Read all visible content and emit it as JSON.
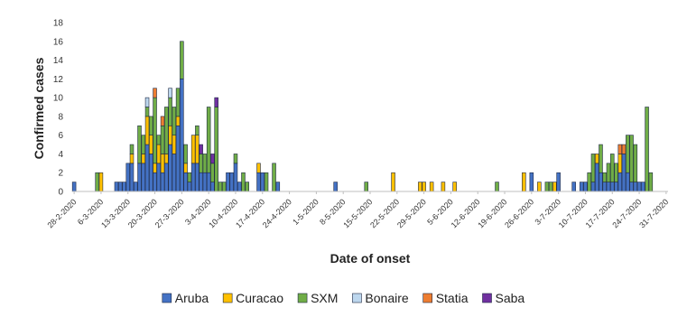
{
  "chart_data": {
    "type": "bar",
    "stacked": true,
    "title": "",
    "xlabel": "Date of onset",
    "ylabel": "Confirmed cases",
    "ylim": [
      0,
      18
    ],
    "yticks": [
      0,
      2,
      4,
      6,
      8,
      10,
      12,
      14,
      16,
      18
    ],
    "grid": false,
    "legend_position": "bottom",
    "x_start": "28-2-2020",
    "x_end": "1-8-2020",
    "x_tick_labels": [
      "28-2-2020",
      "6-3-2020",
      "13-3-2020",
      "20-3-2020",
      "27-3-2020",
      "3-4-2020",
      "10-4-2020",
      "17-4-2020",
      "24-4-2020",
      "1-5-2020",
      "8-5-2020",
      "15-5-2020",
      "22-5-2020",
      "29-5-2020",
      "5-6-2020",
      "12-6-2020",
      "19-6-2020",
      "26-6-2020",
      "3-7-2020",
      "10-7-2020",
      "17-7-2020",
      "24-7-2020",
      "31-7-2020"
    ],
    "series": [
      {
        "name": "Aruba",
        "color": "#4472C4"
      },
      {
        "name": "Curacao",
        "color": "#FFC000"
      },
      {
        "name": "SXM",
        "color": "#70AD47"
      },
      {
        "name": "Bonaire",
        "color": "#BDD7EE"
      },
      {
        "name": "Statia",
        "color": "#ED7D31"
      },
      {
        "name": "Saba",
        "color": "#7030A0"
      }
    ],
    "bars": [
      {
        "date": "28-2-2020",
        "values": [
          1,
          0,
          0,
          0,
          0,
          0
        ]
      },
      {
        "date": "5-3-2020",
        "values": [
          0,
          0,
          2,
          0,
          0,
          0
        ]
      },
      {
        "date": "6-3-2020",
        "values": [
          0,
          2,
          0,
          0,
          0,
          0
        ]
      },
      {
        "date": "10-3-2020",
        "values": [
          1,
          0,
          0,
          0,
          0,
          0
        ]
      },
      {
        "date": "11-3-2020",
        "values": [
          1,
          0,
          0,
          0,
          0,
          0
        ]
      },
      {
        "date": "12-3-2020",
        "values": [
          1,
          0,
          0,
          0,
          0,
          0
        ]
      },
      {
        "date": "13-3-2020",
        "values": [
          3,
          0,
          0,
          0,
          0,
          0
        ]
      },
      {
        "date": "14-3-2020",
        "values": [
          3,
          1,
          1,
          0,
          0,
          0
        ]
      },
      {
        "date": "15-3-2020",
        "values": [
          1,
          0,
          0,
          0,
          0,
          0
        ]
      },
      {
        "date": "16-3-2020",
        "values": [
          3,
          0,
          4,
          0,
          0,
          0
        ]
      },
      {
        "date": "17-3-2020",
        "values": [
          3,
          1,
          2,
          0,
          0,
          0
        ]
      },
      {
        "date": "18-3-2020",
        "values": [
          5,
          3,
          1,
          1,
          0,
          0
        ]
      },
      {
        "date": "19-3-2020",
        "values": [
          4,
          2,
          2,
          0,
          0,
          0
        ]
      },
      {
        "date": "20-3-2020",
        "values": [
          2,
          1,
          7,
          0,
          1,
          0
        ]
      },
      {
        "date": "21-3-2020",
        "values": [
          3,
          2,
          1,
          0,
          0,
          0
        ]
      },
      {
        "date": "22-3-2020",
        "values": [
          2,
          2,
          3,
          0,
          1,
          0
        ]
      },
      {
        "date": "23-3-2020",
        "values": [
          3,
          1,
          5,
          0,
          0,
          0
        ]
      },
      {
        "date": "24-3-2020",
        "values": [
          5,
          2,
          3,
          1,
          0,
          0
        ]
      },
      {
        "date": "25-3-2020",
        "values": [
          4,
          2,
          3,
          0,
          0,
          0
        ]
      },
      {
        "date": "26-3-2020",
        "values": [
          7,
          1,
          3,
          0,
          0,
          0
        ]
      },
      {
        "date": "27-3-2020",
        "values": [
          12,
          0,
          4,
          0,
          0,
          0
        ]
      },
      {
        "date": "28-3-2020",
        "values": [
          2,
          1,
          2,
          0,
          0,
          0
        ]
      },
      {
        "date": "29-3-2020",
        "values": [
          1,
          0,
          1,
          0,
          0,
          0
        ]
      },
      {
        "date": "30-3-2020",
        "values": [
          3,
          3,
          0,
          0,
          0,
          0
        ]
      },
      {
        "date": "31-3-2020",
        "values": [
          3,
          3,
          1,
          0,
          0,
          0
        ]
      },
      {
        "date": "1-4-2020",
        "values": [
          2,
          0,
          2,
          0,
          0,
          1
        ]
      },
      {
        "date": "2-4-2020",
        "values": [
          2,
          0,
          2,
          0,
          0,
          0
        ]
      },
      {
        "date": "3-4-2020",
        "values": [
          2,
          0,
          7,
          0,
          0,
          0
        ]
      },
      {
        "date": "4-4-2020",
        "values": [
          1,
          0,
          2,
          0,
          0,
          1
        ]
      },
      {
        "date": "5-4-2020",
        "values": [
          0,
          0,
          9,
          0,
          0,
          1
        ]
      },
      {
        "date": "6-4-2020",
        "values": [
          0,
          0,
          1,
          0,
          0,
          0
        ]
      },
      {
        "date": "7-4-2020",
        "values": [
          0,
          0,
          1,
          0,
          0,
          0
        ]
      },
      {
        "date": "8-4-2020",
        "values": [
          2,
          0,
          0,
          0,
          0,
          0
        ]
      },
      {
        "date": "9-4-2020",
        "values": [
          2,
          0,
          0,
          0,
          0,
          0
        ]
      },
      {
        "date": "10-4-2020",
        "values": [
          3,
          0,
          1,
          0,
          0,
          0
        ]
      },
      {
        "date": "11-4-2020",
        "values": [
          1,
          0,
          0,
          0,
          0,
          0
        ]
      },
      {
        "date": "12-4-2020",
        "values": [
          0,
          0,
          2,
          0,
          0,
          0
        ]
      },
      {
        "date": "13-4-2020",
        "values": [
          0,
          0,
          1,
          0,
          0,
          0
        ]
      },
      {
        "date": "16-4-2020",
        "values": [
          2,
          1,
          0,
          0,
          0,
          0
        ]
      },
      {
        "date": "17-4-2020",
        "values": [
          2,
          0,
          0,
          0,
          0,
          0
        ]
      },
      {
        "date": "18-4-2020",
        "values": [
          0,
          0,
          2,
          0,
          0,
          0
        ]
      },
      {
        "date": "20-4-2020",
        "values": [
          0,
          0,
          3,
          0,
          0,
          0
        ]
      },
      {
        "date": "21-4-2020",
        "values": [
          1,
          0,
          0,
          0,
          0,
          0
        ]
      },
      {
        "date": "6-5-2020",
        "values": [
          1,
          0,
          0,
          0,
          0,
          0
        ]
      },
      {
        "date": "14-5-2020",
        "values": [
          0,
          0,
          1,
          0,
          0,
          0
        ]
      },
      {
        "date": "21-5-2020",
        "values": [
          0,
          2,
          0,
          0,
          0,
          0
        ]
      },
      {
        "date": "28-5-2020",
        "values": [
          0,
          1,
          0,
          0,
          0,
          0
        ]
      },
      {
        "date": "29-5-2020",
        "values": [
          0,
          1,
          0,
          0,
          0,
          0
        ]
      },
      {
        "date": "31-5-2020",
        "values": [
          0,
          1,
          0,
          0,
          0,
          0
        ]
      },
      {
        "date": "3-6-2020",
        "values": [
          0,
          1,
          0,
          0,
          0,
          0
        ]
      },
      {
        "date": "6-6-2020",
        "values": [
          0,
          1,
          0,
          0,
          0,
          0
        ]
      },
      {
        "date": "17-6-2020",
        "values": [
          0,
          0,
          1,
          0,
          0,
          0
        ]
      },
      {
        "date": "24-6-2020",
        "values": [
          0,
          2,
          0,
          0,
          0,
          0
        ]
      },
      {
        "date": "26-6-2020",
        "values": [
          2,
          0,
          0,
          0,
          0,
          0
        ]
      },
      {
        "date": "28-6-2020",
        "values": [
          0,
          1,
          0,
          0,
          0,
          0
        ]
      },
      {
        "date": "30-6-2020",
        "values": [
          0,
          0,
          1,
          0,
          0,
          0
        ]
      },
      {
        "date": "1-7-2020",
        "values": [
          0,
          0,
          1,
          0,
          0,
          0
        ]
      },
      {
        "date": "2-7-2020",
        "values": [
          0,
          1,
          0,
          0,
          0,
          0
        ]
      },
      {
        "date": "3-7-2020",
        "values": [
          2,
          0,
          0,
          0,
          0,
          0
        ]
      },
      {
        "date": "7-7-2020",
        "values": [
          1,
          0,
          0,
          0,
          0,
          0
        ]
      },
      {
        "date": "9-7-2020",
        "values": [
          1,
          0,
          0,
          0,
          0,
          0
        ]
      },
      {
        "date": "10-7-2020",
        "values": [
          1,
          0,
          0,
          0,
          0,
          0
        ]
      },
      {
        "date": "11-7-2020",
        "values": [
          0,
          0,
          2,
          0,
          0,
          0
        ]
      },
      {
        "date": "12-7-2020",
        "values": [
          1,
          0,
          3,
          0,
          0,
          0
        ]
      },
      {
        "date": "13-7-2020",
        "values": [
          3,
          1,
          0,
          0,
          0,
          0
        ]
      },
      {
        "date": "14-7-2020",
        "values": [
          2,
          0,
          3,
          0,
          0,
          0
        ]
      },
      {
        "date": "15-7-2020",
        "values": [
          1,
          0,
          1,
          0,
          0,
          0
        ]
      },
      {
        "date": "16-7-2020",
        "values": [
          1,
          0,
          2,
          0,
          0,
          0
        ]
      },
      {
        "date": "17-7-2020",
        "values": [
          1,
          0,
          3,
          0,
          0,
          0
        ]
      },
      {
        "date": "18-7-2020",
        "values": [
          1,
          0,
          2,
          0,
          0,
          0
        ]
      },
      {
        "date": "19-7-2020",
        "values": [
          2,
          2,
          0,
          0,
          1,
          0
        ]
      },
      {
        "date": "20-7-2020",
        "values": [
          4,
          0,
          0,
          0,
          1,
          0
        ]
      },
      {
        "date": "21-7-2020",
        "values": [
          2,
          0,
          4,
          0,
          0,
          0
        ]
      },
      {
        "date": "22-7-2020",
        "values": [
          1,
          0,
          5,
          0,
          0,
          0
        ]
      },
      {
        "date": "23-7-2020",
        "values": [
          1,
          0,
          4,
          0,
          0,
          0
        ]
      },
      {
        "date": "24-7-2020",
        "values": [
          1,
          0,
          0,
          0,
          0,
          0
        ]
      },
      {
        "date": "25-7-2020",
        "values": [
          1,
          0,
          0,
          0,
          0,
          0
        ]
      },
      {
        "date": "26-7-2020",
        "values": [
          0,
          0,
          9,
          0,
          0,
          0
        ]
      },
      {
        "date": "27-7-2020",
        "values": [
          0,
          0,
          2,
          0,
          0,
          0
        ]
      }
    ]
  }
}
